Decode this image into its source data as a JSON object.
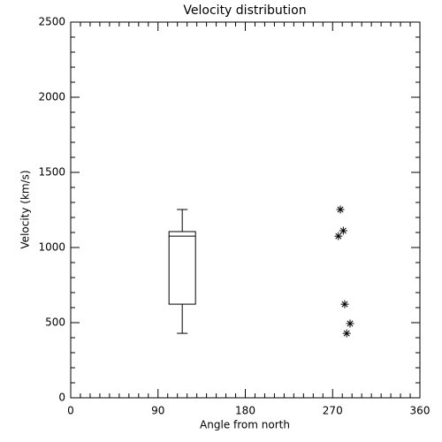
{
  "chart_data": {
    "type": "box",
    "title": "Velocity distribution",
    "x_label": "Angle from north",
    "y_label": "Velocity (km/s)",
    "xlim": [
      0,
      360
    ],
    "xticks": [
      0,
      90,
      180,
      270,
      360
    ],
    "xminorticks": [
      10,
      20,
      30,
      40,
      50,
      60,
      70,
      80,
      100,
      110,
      120,
      130,
      140,
      150,
      160,
      170,
      190,
      200,
      210,
      220,
      230,
      240,
      250,
      260,
      280,
      290,
      300,
      310,
      320,
      330,
      340,
      350
    ],
    "ylim": [
      0,
      2500
    ],
    "yticks": [
      0,
      500,
      1000,
      1500,
      2000,
      2500
    ],
    "yminorticks": [
      100,
      200,
      300,
      400,
      600,
      700,
      800,
      900,
      1100,
      1200,
      1300,
      1400,
      1600,
      1700,
      1800,
      1900,
      2100,
      2200,
      2300,
      2400
    ],
    "color": "#000000",
    "box": {
      "x": 115,
      "min": 429,
      "q1": 623,
      "median": 1076,
      "q3": 1106,
      "max": 1253
    },
    "points": {
      "x": [
        278,
        281,
        276,
        282.5,
        288,
        284.5
      ],
      "y": [
        1253,
        1112,
        1076,
        623,
        494,
        429
      ]
    }
  }
}
